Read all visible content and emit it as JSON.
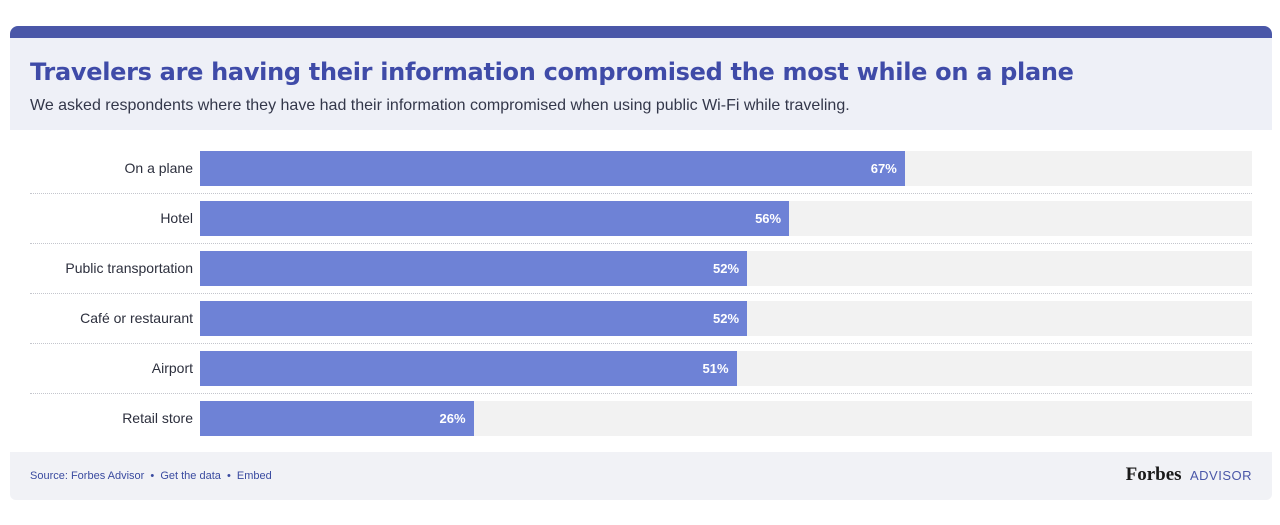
{
  "header": {
    "title": "Travelers are having their information compromised the most while on a plane",
    "subtitle": "We asked respondents where they have had their information compromised when using public Wi-Fi while traveling."
  },
  "chart_data": {
    "type": "bar",
    "orientation": "horizontal",
    "title": "Travelers are having their information compromised the most while on a plane",
    "subtitle": "We asked respondents where they have had their information compromised when using public Wi-Fi while traveling.",
    "categories": [
      "On a plane",
      "Hotel",
      "Public transportation",
      "Café or restaurant",
      "Airport",
      "Retail store"
    ],
    "values": [
      67,
      56,
      52,
      52,
      51,
      26
    ],
    "value_labels": [
      "67%",
      "56%",
      "52%",
      "52%",
      "51%",
      "26%"
    ],
    "xlim": [
      0,
      100
    ],
    "xlabel": "",
    "ylabel": "",
    "grid": false,
    "bar_color": "#6e82d6"
  },
  "footer": {
    "source_text": "Source: Forbes Advisor",
    "get_data_link": "Get the data",
    "embed_link": "Embed",
    "separator": "•",
    "logo_brand": "Forbes",
    "logo_suffix": "ADVISOR"
  },
  "colors": {
    "accent": "#4a57a8",
    "bar": "#6e82d6",
    "track": "#f2f2f2"
  }
}
